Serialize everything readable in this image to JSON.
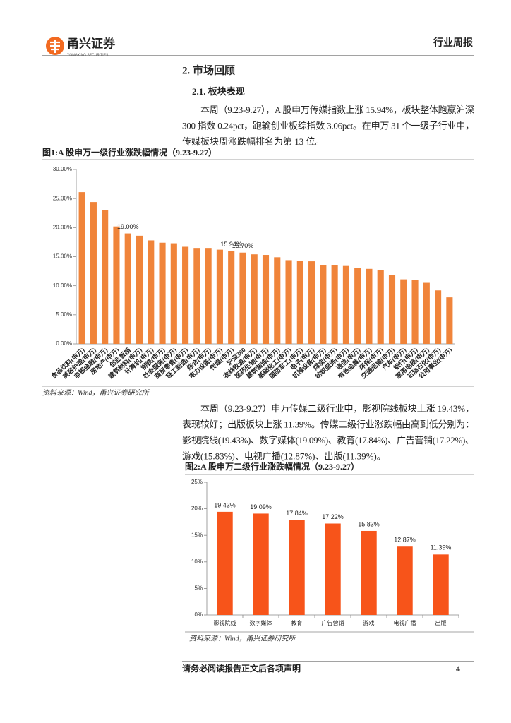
{
  "header": {
    "brand": "甬兴证券",
    "brand_en": "YONGXING SECURITIES",
    "report_type": "行业周报"
  },
  "section": {
    "title": "2. 市场回顾",
    "subsection": "2.1. 板块表现"
  },
  "paragraphs": [
    {
      "lines": [
        "本周（9.23-9.27），A 股申万传媒指数上涨 15.94%，板块整体跑赢沪深",
        "300 指数 0.24pct，跑输创业板综指数 3.06pct。在申万 31 个一级子行业中，",
        "传媒板块周涨跌幅排名为第 13 位。"
      ]
    },
    {
      "lines": [
        "本周（9.23-9.27）申万传媒二级行业中，影视院线板块上涨 19.43%，",
        "表现较好；出版板块上涨 11.39%。传媒二级行业涨跌幅由高到低分别为：",
        "影视院线(19.43%)、数字媒体(19.09%)、教育(17.84%)、广告营销(17.22%)、",
        "游戏(15.83%)、电视广播(12.87%)、出版(11.39%)。"
      ]
    }
  ],
  "figures": [
    {
      "title": "图1:A 股申万一级行业涨跌幅情况（9.23-9.27）",
      "source": "资料来源：Wind，甬兴证券研究所",
      "chart_data": {
        "type": "bar",
        "color": "#f0843a",
        "categories": [
          "食品饮料(申万)",
          "美容护理(申万)",
          "非银金融(申万)",
          "房地产(申万)",
          "创业板指",
          "建筑材料(申万)",
          "计算机(申万)",
          "钢铁(申万)",
          "社会服务(申万)",
          "商贸零售(申万)",
          "轻工制造(申万)",
          "综合(申万)",
          "电力设备(申万)",
          "传媒(申万)",
          "沪深300",
          "农林牧渔(申万)",
          "医药生物(申万)",
          "建筑装饰(申万)",
          "基础化工(申万)",
          "国防军工(申万)",
          "电子(申万)",
          "机械设备(申万)",
          "煤炭(申万)",
          "纺织服饰(申万)",
          "通信(申万)",
          "有色金属(申万)",
          "环保(申万)",
          "交通运输(申万)",
          "汽车(申万)",
          "银行(申万)",
          "家用电器(申万)",
          "石油石化(申万)",
          "公用事业(申万)"
        ],
        "values": [
          26.1,
          24.4,
          23.0,
          20.2,
          19.0,
          18.6,
          17.8,
          17.4,
          17.3,
          16.7,
          16.5,
          16.5,
          16.2,
          15.94,
          15.7,
          15.4,
          15.3,
          14.9,
          14.4,
          14.3,
          14.2,
          13.6,
          13.5,
          13.4,
          13.1,
          12.9,
          12.7,
          11.8,
          11.1,
          11.0,
          10.5,
          9.2,
          8.0
        ],
        "value_labels": [
          null,
          null,
          null,
          null,
          "19.00%",
          null,
          null,
          null,
          null,
          null,
          null,
          null,
          null,
          "15.94%",
          "15.70%",
          null,
          null,
          null,
          null,
          null,
          null,
          null,
          null,
          null,
          null,
          null,
          null,
          null,
          null,
          null,
          null,
          null,
          null
        ],
        "ylim": [
          0,
          30
        ],
        "yticks": [
          {
            "value": 0,
            "label": "0.00%"
          },
          {
            "value": 5,
            "label": "5.00%"
          },
          {
            "value": 10,
            "label": "10.00%"
          },
          {
            "value": 15,
            "label": "15.00%"
          },
          {
            "value": 20,
            "label": "20.00%"
          },
          {
            "value": 25,
            "label": "25.00%"
          },
          {
            "value": 30,
            "label": "30.00%"
          }
        ],
        "grid": false
      }
    },
    {
      "title": "图2:A 股申万二级行业涨跌幅情况（9.23-9.27）",
      "source": "资料来源：Wind，甬兴证券研究所",
      "chart_data": {
        "type": "bar",
        "color": "#f7541a",
        "categories": [
          "影视院线",
          "数字媒体",
          "教育",
          "广告营销",
          "游戏",
          "电视广播",
          "出版"
        ],
        "values": [
          19.43,
          19.09,
          17.84,
          17.22,
          15.83,
          12.87,
          11.39
        ],
        "value_labels": [
          "19.43%",
          "19.09%",
          "17.84%",
          "17.22%",
          "15.83%",
          "12.87%",
          "11.39%"
        ],
        "ylim": [
          0,
          25
        ],
        "yticks": [
          {
            "value": 0,
            "label": "0%"
          },
          {
            "value": 5,
            "label": "5%"
          },
          {
            "value": 10,
            "label": "10%"
          },
          {
            "value": 15,
            "label": "15%"
          },
          {
            "value": 20,
            "label": "20%"
          },
          {
            "value": 25,
            "label": "25%"
          }
        ],
        "grid": false
      }
    }
  ],
  "footer": {
    "disclaimer": "请务必阅读报告正文后各项声明",
    "page": 4
  }
}
